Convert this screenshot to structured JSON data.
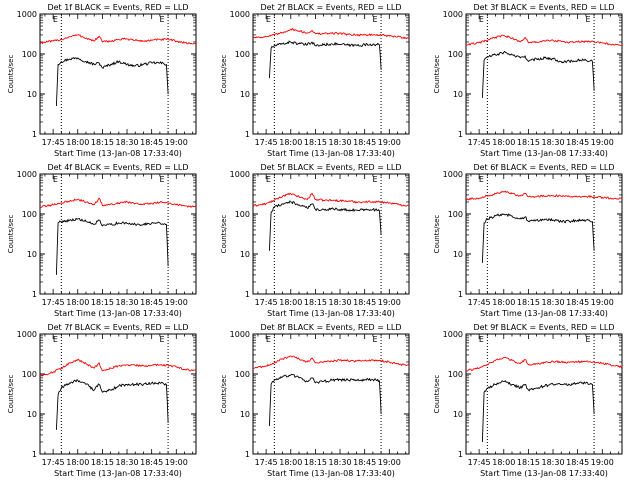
{
  "shared": {
    "xlabel": "Start Time (13-Jan-08 17:33:40)",
    "ylabel": "Counts/sec",
    "x_tick_labels": [
      "17:45",
      "18:00",
      "18:15",
      "18:30",
      "18:45",
      "19:00"
    ],
    "y_tick_labels": [
      "1",
      "10",
      "100",
      "1000"
    ],
    "marker_label": "E",
    "colors": {
      "events": "#000000",
      "lld": "#ff0000",
      "frame": "#000000"
    }
  },
  "chart_data": [
    {
      "type": "line",
      "title": "Det 1f BLACK = Events, RED = LLD",
      "y_scale": "log",
      "ylim": [
        1,
        1000
      ],
      "xlim": [
        "17:37",
        "19:12"
      ],
      "x_ticks": [
        "17:45",
        "18:00",
        "18:15",
        "18:30",
        "18:45",
        "19:00"
      ],
      "y_ticks": [
        1,
        10,
        100,
        1000
      ],
      "markers": [
        "17:50",
        "18:55"
      ],
      "series": [
        {
          "name": "Events",
          "x": [
            "17:47",
            "17:48",
            "17:50",
            "17:55",
            "18:00",
            "18:05",
            "18:10",
            "18:13",
            "18:15",
            "18:20",
            "18:25",
            "18:30",
            "18:35",
            "18:40",
            "18:45",
            "18:50",
            "18:54",
            "18:55"
          ],
          "values": [
            5,
            55,
            65,
            75,
            80,
            65,
            55,
            60,
            45,
            55,
            65,
            55,
            50,
            55,
            60,
            60,
            55,
            10
          ]
        },
        {
          "name": "LLD",
          "x": [
            "17:37",
            "17:45",
            "17:50",
            "17:55",
            "18:00",
            "18:05",
            "18:10",
            "18:13",
            "18:15",
            "18:20",
            "18:25",
            "18:30",
            "18:35",
            "18:40",
            "18:45",
            "18:50",
            "18:55",
            "19:00",
            "19:05",
            "19:12"
          ],
          "values": [
            190,
            210,
            230,
            270,
            300,
            250,
            210,
            280,
            200,
            210,
            230,
            240,
            220,
            210,
            220,
            230,
            230,
            210,
            190,
            180
          ]
        }
      ]
    },
    {
      "type": "line",
      "title": "Det 2f BLACK = Events, RED = LLD",
      "y_scale": "log",
      "ylim": [
        1,
        1000
      ],
      "xlim": [
        "17:37",
        "19:12"
      ],
      "x_ticks": [
        "17:45",
        "18:00",
        "18:15",
        "18:30",
        "18:45",
        "19:00"
      ],
      "y_ticks": [
        1,
        10,
        100,
        1000
      ],
      "markers": [
        "17:50",
        "18:55"
      ],
      "series": [
        {
          "name": "Events",
          "x": [
            "17:47",
            "17:48",
            "17:50",
            "17:55",
            "18:00",
            "18:05",
            "18:10",
            "18:13",
            "18:15",
            "18:20",
            "18:25",
            "18:30",
            "18:35",
            "18:40",
            "18:45",
            "18:50",
            "18:54",
            "18:55"
          ],
          "values": [
            25,
            140,
            160,
            180,
            200,
            180,
            170,
            200,
            160,
            170,
            180,
            175,
            165,
            165,
            170,
            175,
            170,
            40
          ]
        },
        {
          "name": "LLD",
          "x": [
            "17:37",
            "17:45",
            "17:50",
            "17:55",
            "18:00",
            "18:05",
            "18:10",
            "18:13",
            "18:15",
            "18:20",
            "18:25",
            "18:30",
            "18:35",
            "18:40",
            "18:45",
            "18:50",
            "18:55",
            "19:00",
            "19:05",
            "19:12"
          ],
          "values": [
            260,
            270,
            300,
            340,
            420,
            380,
            330,
            390,
            320,
            320,
            330,
            330,
            310,
            300,
            300,
            300,
            300,
            280,
            270,
            250
          ]
        }
      ]
    },
    {
      "type": "line",
      "title": "Det 3f BLACK = Events, RED = LLD",
      "y_scale": "log",
      "ylim": [
        1,
        1000
      ],
      "xlim": [
        "17:37",
        "19:12"
      ],
      "x_ticks": [
        "17:45",
        "18:00",
        "18:15",
        "18:30",
        "18:45",
        "19:00"
      ],
      "y_ticks": [
        1,
        10,
        100,
        1000
      ],
      "markers": [
        "17:50",
        "18:55"
      ],
      "series": [
        {
          "name": "Events",
          "x": [
            "17:47",
            "17:48",
            "17:50",
            "17:55",
            "18:00",
            "18:05",
            "18:10",
            "18:13",
            "18:15",
            "18:20",
            "18:25",
            "18:30",
            "18:35",
            "18:40",
            "18:45",
            "18:50",
            "18:54",
            "18:55"
          ],
          "values": [
            8,
            70,
            85,
            95,
            110,
            95,
            80,
            90,
            65,
            75,
            80,
            75,
            65,
            65,
            70,
            70,
            65,
            12
          ]
        },
        {
          "name": "LLD",
          "x": [
            "17:37",
            "17:45",
            "17:50",
            "17:55",
            "18:00",
            "18:05",
            "18:10",
            "18:13",
            "18:15",
            "18:20",
            "18:25",
            "18:30",
            "18:35",
            "18:40",
            "18:45",
            "18:50",
            "18:55",
            "19:00",
            "19:05",
            "19:12"
          ],
          "values": [
            170,
            190,
            220,
            260,
            290,
            250,
            200,
            260,
            190,
            200,
            210,
            220,
            205,
            195,
            200,
            205,
            200,
            190,
            175,
            160
          ]
        }
      ]
    },
    {
      "type": "line",
      "title": "Det 4f BLACK = Events, RED = LLD",
      "y_scale": "log",
      "ylim": [
        1,
        1000
      ],
      "xlim": [
        "17:37",
        "19:12"
      ],
      "x_ticks": [
        "17:45",
        "18:00",
        "18:15",
        "18:30",
        "18:45",
        "19:00"
      ],
      "y_ticks": [
        1,
        10,
        100,
        1000
      ],
      "markers": [
        "17:50",
        "18:55"
      ],
      "series": [
        {
          "name": "Events",
          "x": [
            "17:47",
            "17:48",
            "17:50",
            "17:55",
            "18:00",
            "18:05",
            "18:10",
            "18:13",
            "18:15",
            "18:20",
            "18:25",
            "18:30",
            "18:35",
            "18:40",
            "18:45",
            "18:50",
            "18:54",
            "18:55"
          ],
          "values": [
            3,
            60,
            65,
            70,
            75,
            65,
            55,
            70,
            50,
            55,
            60,
            58,
            55,
            55,
            60,
            60,
            55,
            5
          ]
        },
        {
          "name": "LLD",
          "x": [
            "17:37",
            "17:45",
            "17:50",
            "17:55",
            "18:00",
            "18:05",
            "18:10",
            "18:13",
            "18:15",
            "18:20",
            "18:25",
            "18:30",
            "18:35",
            "18:40",
            "18:45",
            "18:50",
            "18:55",
            "19:00",
            "19:05",
            "19:12"
          ],
          "values": [
            150,
            170,
            190,
            210,
            230,
            200,
            170,
            250,
            160,
            175,
            190,
            200,
            185,
            180,
            185,
            195,
            190,
            170,
            160,
            150
          ]
        }
      ]
    },
    {
      "type": "line",
      "title": "Det 5f BLACK = Events, RED = LLD",
      "y_scale": "log",
      "ylim": [
        1,
        1000
      ],
      "xlim": [
        "17:37",
        "19:12"
      ],
      "x_ticks": [
        "17:45",
        "18:00",
        "18:15",
        "18:30",
        "18:45",
        "19:00"
      ],
      "y_ticks": [
        1,
        10,
        100,
        1000
      ],
      "markers": [
        "17:50",
        "18:55"
      ],
      "series": [
        {
          "name": "Events",
          "x": [
            "17:47",
            "17:48",
            "17:50",
            "17:55",
            "18:00",
            "18:05",
            "18:10",
            "18:13",
            "18:15",
            "18:20",
            "18:25",
            "18:30",
            "18:35",
            "18:40",
            "18:45",
            "18:50",
            "18:54",
            "18:55"
          ],
          "values": [
            12,
            110,
            150,
            180,
            200,
            170,
            140,
            180,
            130,
            130,
            135,
            130,
            125,
            125,
            130,
            130,
            120,
            30
          ]
        },
        {
          "name": "LLD",
          "x": [
            "17:37",
            "17:45",
            "17:50",
            "17:55",
            "18:00",
            "18:05",
            "18:10",
            "18:13",
            "18:15",
            "18:20",
            "18:25",
            "18:30",
            "18:35",
            "18:40",
            "18:45",
            "18:50",
            "18:55",
            "19:00",
            "19:05",
            "19:12"
          ],
          "values": [
            160,
            180,
            220,
            280,
            320,
            270,
            230,
            330,
            230,
            220,
            220,
            215,
            210,
            200,
            200,
            205,
            200,
            190,
            175,
            160
          ]
        }
      ]
    },
    {
      "type": "line",
      "title": "Det 6f BLACK = Events, RED = LLD",
      "y_scale": "log",
      "ylim": [
        1,
        1000
      ],
      "xlim": [
        "17:37",
        "19:12"
      ],
      "x_ticks": [
        "17:45",
        "18:00",
        "18:15",
        "18:30",
        "18:45",
        "19:00"
      ],
      "y_ticks": [
        1,
        10,
        100,
        1000
      ],
      "markers": [
        "17:50",
        "18:55"
      ],
      "series": [
        {
          "name": "Events",
          "x": [
            "17:47",
            "17:48",
            "17:50",
            "17:55",
            "18:00",
            "18:05",
            "18:10",
            "18:13",
            "18:15",
            "18:20",
            "18:25",
            "18:30",
            "18:35",
            "18:40",
            "18:45",
            "18:50",
            "18:54",
            "18:55"
          ],
          "values": [
            6,
            60,
            75,
            90,
            100,
            90,
            75,
            85,
            65,
            70,
            75,
            70,
            65,
            65,
            70,
            70,
            65,
            12
          ]
        },
        {
          "name": "LLD",
          "x": [
            "17:37",
            "17:45",
            "17:50",
            "17:55",
            "18:00",
            "18:05",
            "18:10",
            "18:13",
            "18:15",
            "18:20",
            "18:25",
            "18:30",
            "18:35",
            "18:40",
            "18:45",
            "18:50",
            "18:55",
            "19:00",
            "19:05",
            "19:12"
          ],
          "values": [
            230,
            250,
            280,
            320,
            360,
            320,
            280,
            330,
            270,
            270,
            280,
            290,
            280,
            270,
            270,
            275,
            270,
            260,
            250,
            240
          ]
        }
      ]
    },
    {
      "type": "line",
      "title": "Det 7f BLACK = Events, RED = LLD",
      "y_scale": "log",
      "ylim": [
        1,
        1000
      ],
      "xlim": [
        "17:37",
        "19:12"
      ],
      "x_ticks": [
        "17:45",
        "18:00",
        "18:15",
        "18:30",
        "18:45",
        "19:00"
      ],
      "y_ticks": [
        1,
        10,
        100,
        1000
      ],
      "markers": [
        "17:50",
        "18:55"
      ],
      "series": [
        {
          "name": "Events",
          "x": [
            "17:47",
            "17:48",
            "17:50",
            "17:55",
            "18:00",
            "18:05",
            "18:10",
            "18:13",
            "18:15",
            "18:20",
            "18:25",
            "18:30",
            "18:35",
            "18:40",
            "18:45",
            "18:50",
            "18:54",
            "18:55"
          ],
          "values": [
            4,
            30,
            45,
            60,
            70,
            55,
            40,
            55,
            35,
            40,
            50,
            55,
            55,
            55,
            60,
            60,
            55,
            6
          ]
        },
        {
          "name": "LLD",
          "x": [
            "17:37",
            "17:45",
            "17:50",
            "17:55",
            "18:00",
            "18:05",
            "18:10",
            "18:13",
            "18:15",
            "18:20",
            "18:25",
            "18:30",
            "18:35",
            "18:40",
            "18:45",
            "18:50",
            "18:55",
            "19:00",
            "19:05",
            "19:12"
          ],
          "values": [
            90,
            110,
            140,
            190,
            230,
            180,
            140,
            190,
            120,
            140,
            160,
            170,
            165,
            160,
            165,
            170,
            165,
            150,
            130,
            120
          ]
        }
      ]
    },
    {
      "type": "line",
      "title": "Det 8f BLACK = Events, RED = LLD",
      "y_scale": "log",
      "ylim": [
        1,
        1000
      ],
      "xlim": [
        "17:37",
        "19:12"
      ],
      "x_ticks": [
        "17:45",
        "18:00",
        "18:15",
        "18:30",
        "18:45",
        "19:00"
      ],
      "y_ticks": [
        1,
        10,
        100,
        1000
      ],
      "markers": [
        "17:50",
        "18:55"
      ],
      "series": [
        {
          "name": "Events",
          "x": [
            "17:47",
            "17:48",
            "17:50",
            "17:55",
            "18:00",
            "18:05",
            "18:10",
            "18:13",
            "18:15",
            "18:20",
            "18:25",
            "18:30",
            "18:35",
            "18:40",
            "18:45",
            "18:50",
            "18:54",
            "18:55"
          ],
          "values": [
            5,
            55,
            70,
            85,
            95,
            80,
            65,
            80,
            60,
            65,
            70,
            72,
            70,
            70,
            72,
            72,
            68,
            10
          ]
        },
        {
          "name": "LLD",
          "x": [
            "17:37",
            "17:45",
            "17:50",
            "17:55",
            "18:00",
            "18:05",
            "18:10",
            "18:13",
            "18:15",
            "18:20",
            "18:25",
            "18:30",
            "18:35",
            "18:40",
            "18:45",
            "18:50",
            "18:55",
            "19:00",
            "19:05",
            "19:12"
          ],
          "values": [
            140,
            160,
            190,
            240,
            280,
            240,
            200,
            250,
            190,
            200,
            210,
            220,
            215,
            210,
            215,
            220,
            215,
            200,
            180,
            160
          ]
        }
      ]
    },
    {
      "type": "line",
      "title": "Det 9f BLACK = Events, RED = LLD",
      "y_scale": "log",
      "ylim": [
        1,
        1000
      ],
      "xlim": [
        "17:37",
        "19:12"
      ],
      "x_ticks": [
        "17:45",
        "18:00",
        "18:15",
        "18:30",
        "18:45",
        "19:00"
      ],
      "y_ticks": [
        1,
        10,
        100,
        1000
      ],
      "markers": [
        "17:50",
        "18:55"
      ],
      "series": [
        {
          "name": "Events",
          "x": [
            "17:47",
            "17:48",
            "17:50",
            "17:55",
            "18:00",
            "18:05",
            "18:10",
            "18:13",
            "18:15",
            "18:20",
            "18:25",
            "18:30",
            "18:35",
            "18:40",
            "18:45",
            "18:50",
            "18:54",
            "18:55"
          ],
          "values": [
            2,
            35,
            45,
            55,
            65,
            55,
            45,
            55,
            40,
            45,
            50,
            55,
            55,
            55,
            60,
            60,
            55,
            10
          ]
        },
        {
          "name": "LLD",
          "x": [
            "17:37",
            "17:45",
            "17:50",
            "17:55",
            "18:00",
            "18:05",
            "18:10",
            "18:13",
            "18:15",
            "18:20",
            "18:25",
            "18:30",
            "18:35",
            "18:40",
            "18:45",
            "18:50",
            "18:55",
            "19:00",
            "19:05",
            "19:12"
          ],
          "values": [
            120,
            140,
            170,
            220,
            260,
            220,
            180,
            230,
            170,
            180,
            190,
            205,
            200,
            195,
            200,
            205,
            200,
            185,
            170,
            150
          ]
        }
      ]
    }
  ]
}
